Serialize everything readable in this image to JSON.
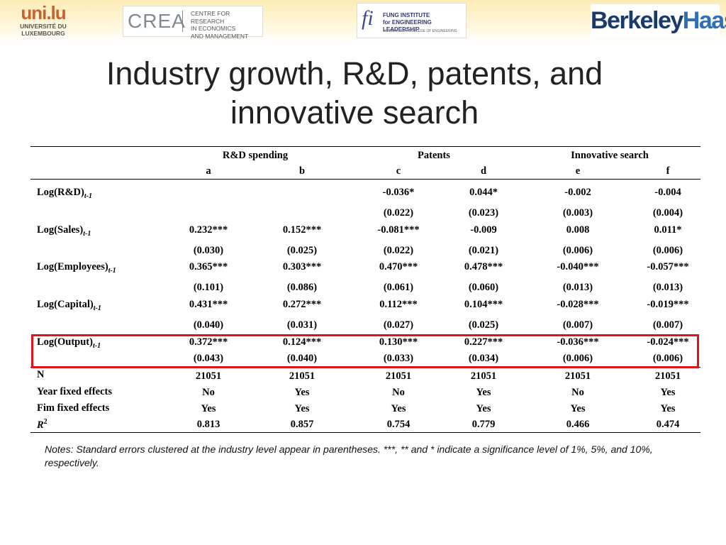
{
  "header": {
    "uni_mark": "uni.lu",
    "uni_name": [
      "UNIVERSITÉ DU",
      "LUXEMBOURG"
    ],
    "crea_mark": "CREA",
    "crea_text": [
      "CENTRE FOR RESEARCH",
      "IN ECONOMICS",
      "AND MANAGEMENT"
    ],
    "fung_mark": "fi",
    "fung_text": [
      "FUNG INSTITUTE",
      "for ENGINEERING LEADERSHIP"
    ],
    "fung_sub": "UC BERKELEY COLLEGE OF ENGINEERING",
    "haas_berkeley": "Berkeley",
    "haas_haas": "Haas"
  },
  "title": [
    "Industry growth, R&D, patents, and",
    "innovative search"
  ],
  "table": {
    "groups": [
      "R&D spending",
      "Patents",
      "Innovative search"
    ],
    "columns": [
      "a",
      "b",
      "c",
      "d",
      "e",
      "f"
    ],
    "rows": [
      {
        "label": "Log(R&D)",
        "sub": "t-1",
        "coef": [
          "",
          "",
          "-0.036*",
          "0.044*",
          "-0.002",
          "-0.004"
        ],
        "se": [
          "",
          "",
          "(0.022)",
          "(0.023)",
          "(0.003)",
          "(0.004)"
        ]
      },
      {
        "label": "Log(Sales)",
        "sub": "t-1",
        "coef": [
          "0.232***",
          "0.152***",
          "-0.081***",
          "-0.009",
          "0.008",
          "0.011*"
        ],
        "se": [
          "(0.030)",
          "(0.025)",
          "(0.022)",
          "(0.021)",
          "(0.006)",
          "(0.006)"
        ]
      },
      {
        "label": "Log(Employees)",
        "sub": "t-1",
        "coef": [
          "0.365***",
          "0.303***",
          "0.470***",
          "0.478***",
          "-0.040***",
          "-0.057***"
        ],
        "se": [
          "(0.101)",
          "(0.086)",
          "(0.061)",
          "(0.060)",
          "(0.013)",
          "(0.013)"
        ]
      },
      {
        "label": "Log(Capital)",
        "sub": "t-1",
        "coef": [
          "0.431***",
          "0.272***",
          "0.112***",
          "0.104***",
          "-0.028***",
          "-0.019***"
        ],
        "se": [
          "(0.040)",
          "(0.031)",
          "(0.027)",
          "(0.025)",
          "(0.007)",
          "(0.007)"
        ]
      },
      {
        "label": "Log(Output)",
        "sub": "t-1",
        "coef": [
          "0.372***",
          "0.124***",
          "0.130***",
          "0.227***",
          "-0.036***",
          "-0.024***"
        ],
        "se": [
          "(0.043)",
          "(0.040)",
          "(0.033)",
          "(0.034)",
          "(0.006)",
          "(0.006)"
        ]
      }
    ],
    "stats": [
      {
        "label": "N",
        "values": [
          "21051",
          "21051",
          "21051",
          "21051",
          "21051",
          "21051"
        ]
      },
      {
        "label": "Year fixed effects",
        "values": [
          "No",
          "Yes",
          "No",
          "Yes",
          "No",
          "Yes"
        ]
      },
      {
        "label": "Fim fixed effects",
        "values": [
          "Yes",
          "Yes",
          "Yes",
          "Yes",
          "Yes",
          "Yes"
        ]
      },
      {
        "label": "R",
        "sup": "2",
        "values": [
          "0.813",
          "0.857",
          "0.754",
          "0.779",
          "0.466",
          "0.474"
        ]
      }
    ],
    "highlight_color": "#e0121a"
  },
  "notes": "Notes: Standard errors clustered at the industry level appear in parentheses. ***, ** and * indicate a significance level of 1%, 5%, and 10%, respectively."
}
